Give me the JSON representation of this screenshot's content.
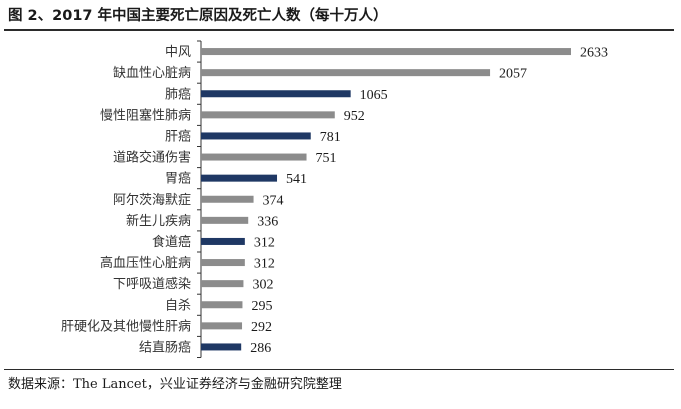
{
  "header": {
    "title": "图 2、2017 年中国主要死亡原因及死亡人数（每十万人）"
  },
  "footer": {
    "source": "数据来源：The Lancet，兴业证券经济与金融研究院整理"
  },
  "colors": {
    "highlight": "#1f3864",
    "default": "#8c8c8c",
    "axis": "#333333"
  },
  "chart_data": {
    "type": "bar",
    "orientation": "horizontal",
    "title": "图 2、2017 年中国主要死亡原因及死亡人数（每十万人）",
    "xlabel": "",
    "ylabel": "",
    "xlim": [
      0,
      2633
    ],
    "grid": false,
    "legend": "none",
    "categories": [
      "中风",
      "缺血性心脏病",
      "肺癌",
      "慢性阻塞性肺病",
      "肝癌",
      "道路交通伤害",
      "胃癌",
      "阿尔茨海默症",
      "新生儿疾病",
      "食道癌",
      "高血压性心脏病",
      "下呼吸道感染",
      "自杀",
      "肝硬化及其他慢性肝病",
      "结直肠癌"
    ],
    "values": [
      2633,
      2057,
      1065,
      952,
      781,
      751,
      541,
      374,
      336,
      312,
      312,
      302,
      295,
      292,
      286
    ],
    "highlighted": [
      false,
      false,
      true,
      false,
      true,
      false,
      true,
      false,
      false,
      true,
      false,
      false,
      false,
      false,
      true
    ]
  }
}
